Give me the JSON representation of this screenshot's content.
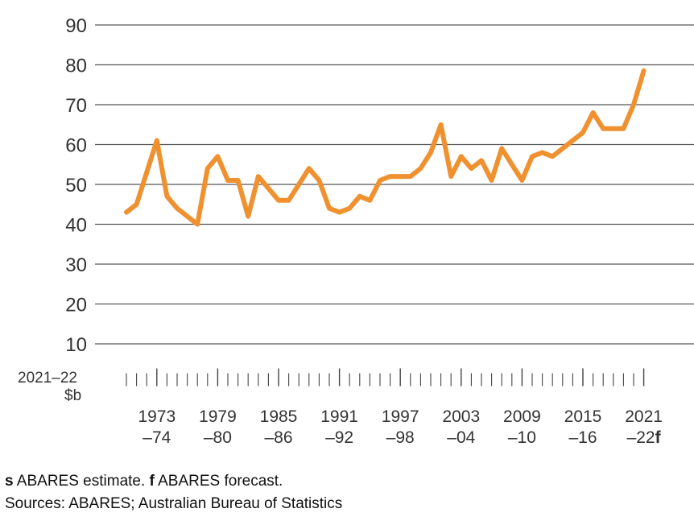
{
  "chart_data": {
    "type": "line",
    "y_unit_label_line1": "2021–22",
    "y_unit_label_line2": "$b",
    "ylim": [
      0,
      90
    ],
    "yticks": [
      10,
      20,
      30,
      40,
      50,
      60,
      70,
      80,
      90
    ],
    "grid": true,
    "line_color": "#F0912F",
    "grid_color": "#555555",
    "x_tick_labels": [
      {
        "line1": "1973",
        "line2": "–74"
      },
      {
        "line1": "1979",
        "line2": "–80"
      },
      {
        "line1": "1985",
        "line2": "–86"
      },
      {
        "line1": "1991",
        "line2": "–92"
      },
      {
        "line1": "1997",
        "line2": "–98"
      },
      {
        "line1": "2003",
        "line2": "–04"
      },
      {
        "line1": "2009",
        "line2": "–10"
      },
      {
        "line1": "2015",
        "line2": "–16"
      },
      {
        "line1": "2021",
        "line2": "–22",
        "suffix": "f"
      }
    ],
    "x": [
      "1970–71",
      "1971–72",
      "1972–73",
      "1973–74",
      "1974–75",
      "1975–76",
      "1976–77",
      "1977–78",
      "1978–79",
      "1979–80",
      "1980–81",
      "1981–82",
      "1982–83",
      "1983–84",
      "1984–85",
      "1985–86",
      "1986–87",
      "1987–88",
      "1988–89",
      "1989–90",
      "1990–91",
      "1991–92",
      "1992–93",
      "1993–94",
      "1994–95",
      "1995–96",
      "1996–97",
      "1997–98",
      "1998–99",
      "1999–00",
      "2000–01",
      "2001–02",
      "2002–03",
      "2003–04",
      "2004–05",
      "2005–06",
      "2006–07",
      "2007–08",
      "2008–09",
      "2009–10",
      "2010–11",
      "2011–12",
      "2012–13",
      "2013–14",
      "2014–15",
      "2015–16",
      "2016–17",
      "2017–18",
      "2018–19",
      "2019–20",
      "2020–21",
      "2021–22"
    ],
    "series": [
      {
        "values": [
          43,
          45,
          53,
          61,
          47,
          44,
          42,
          40,
          54,
          57,
          51,
          51,
          42,
          52,
          49,
          46,
          46,
          50,
          54,
          51,
          44,
          43,
          44,
          47,
          46,
          51,
          52,
          52,
          52,
          54,
          58,
          65,
          52,
          57,
          54,
          56,
          51,
          59,
          55,
          51,
          57,
          58,
          57,
          59,
          61,
          63,
          68,
          64,
          64,
          64,
          70,
          78.5
        ]
      }
    ]
  },
  "notes": {
    "line1_bold": "s",
    "line1_text": " ABARES estimate. ",
    "line1_bold2": "f",
    "line1_text2": " ABARES forecast.",
    "line2": "Sources: ABARES; Australian Bureau of Statistics"
  }
}
